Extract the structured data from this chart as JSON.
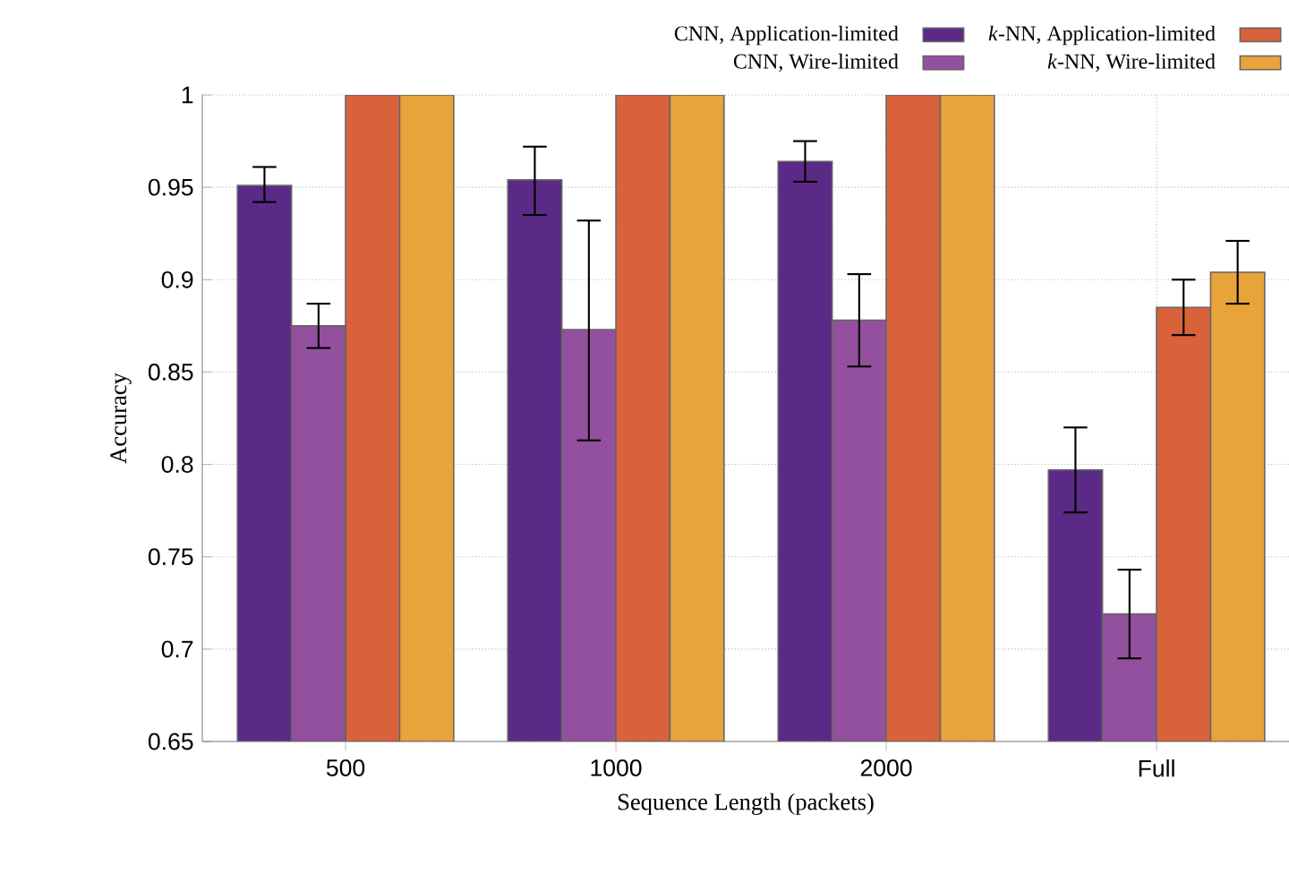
{
  "chart_data": {
    "type": "bar",
    "xlabel": "Sequence Length (packets)",
    "ylabel": "Accuracy",
    "categories": [
      "500",
      "1000",
      "2000",
      "Full"
    ],
    "ylim": [
      0.65,
      1
    ],
    "yticks": [
      0.65,
      0.7,
      0.75,
      0.8,
      0.85,
      0.9,
      0.95,
      1
    ],
    "grid": true,
    "legend": "top",
    "series": [
      {
        "name": "CNN, Application-limited",
        "color": "#5b2a86",
        "values": [
          0.951,
          0.954,
          0.964,
          0.797
        ],
        "errors": [
          [
            0.942,
            0.961
          ],
          [
            0.935,
            0.972
          ],
          [
            0.953,
            0.975
          ],
          [
            0.774,
            0.82
          ]
        ]
      },
      {
        "name": "CNN, Wire-limited",
        "color": "#93509e",
        "values": [
          0.875,
          0.873,
          0.878,
          0.719
        ],
        "errors": [
          [
            0.863,
            0.887
          ],
          [
            0.813,
            0.932
          ],
          [
            0.853,
            0.903
          ],
          [
            0.695,
            0.743
          ]
        ]
      },
      {
        "name": "*k*-NN, Application-limited",
        "color": "#d9623b",
        "values": [
          1,
          1,
          1,
          0.885
        ],
        "errors": [
          null,
          null,
          null,
          [
            0.87,
            0.9
          ]
        ]
      },
      {
        "name": "*k*-NN, Wire-limited",
        "color": "#e8a33a",
        "values": [
          1,
          1,
          1,
          0.904
        ],
        "errors": [
          null,
          null,
          null,
          [
            0.887,
            0.921
          ]
        ]
      }
    ]
  }
}
